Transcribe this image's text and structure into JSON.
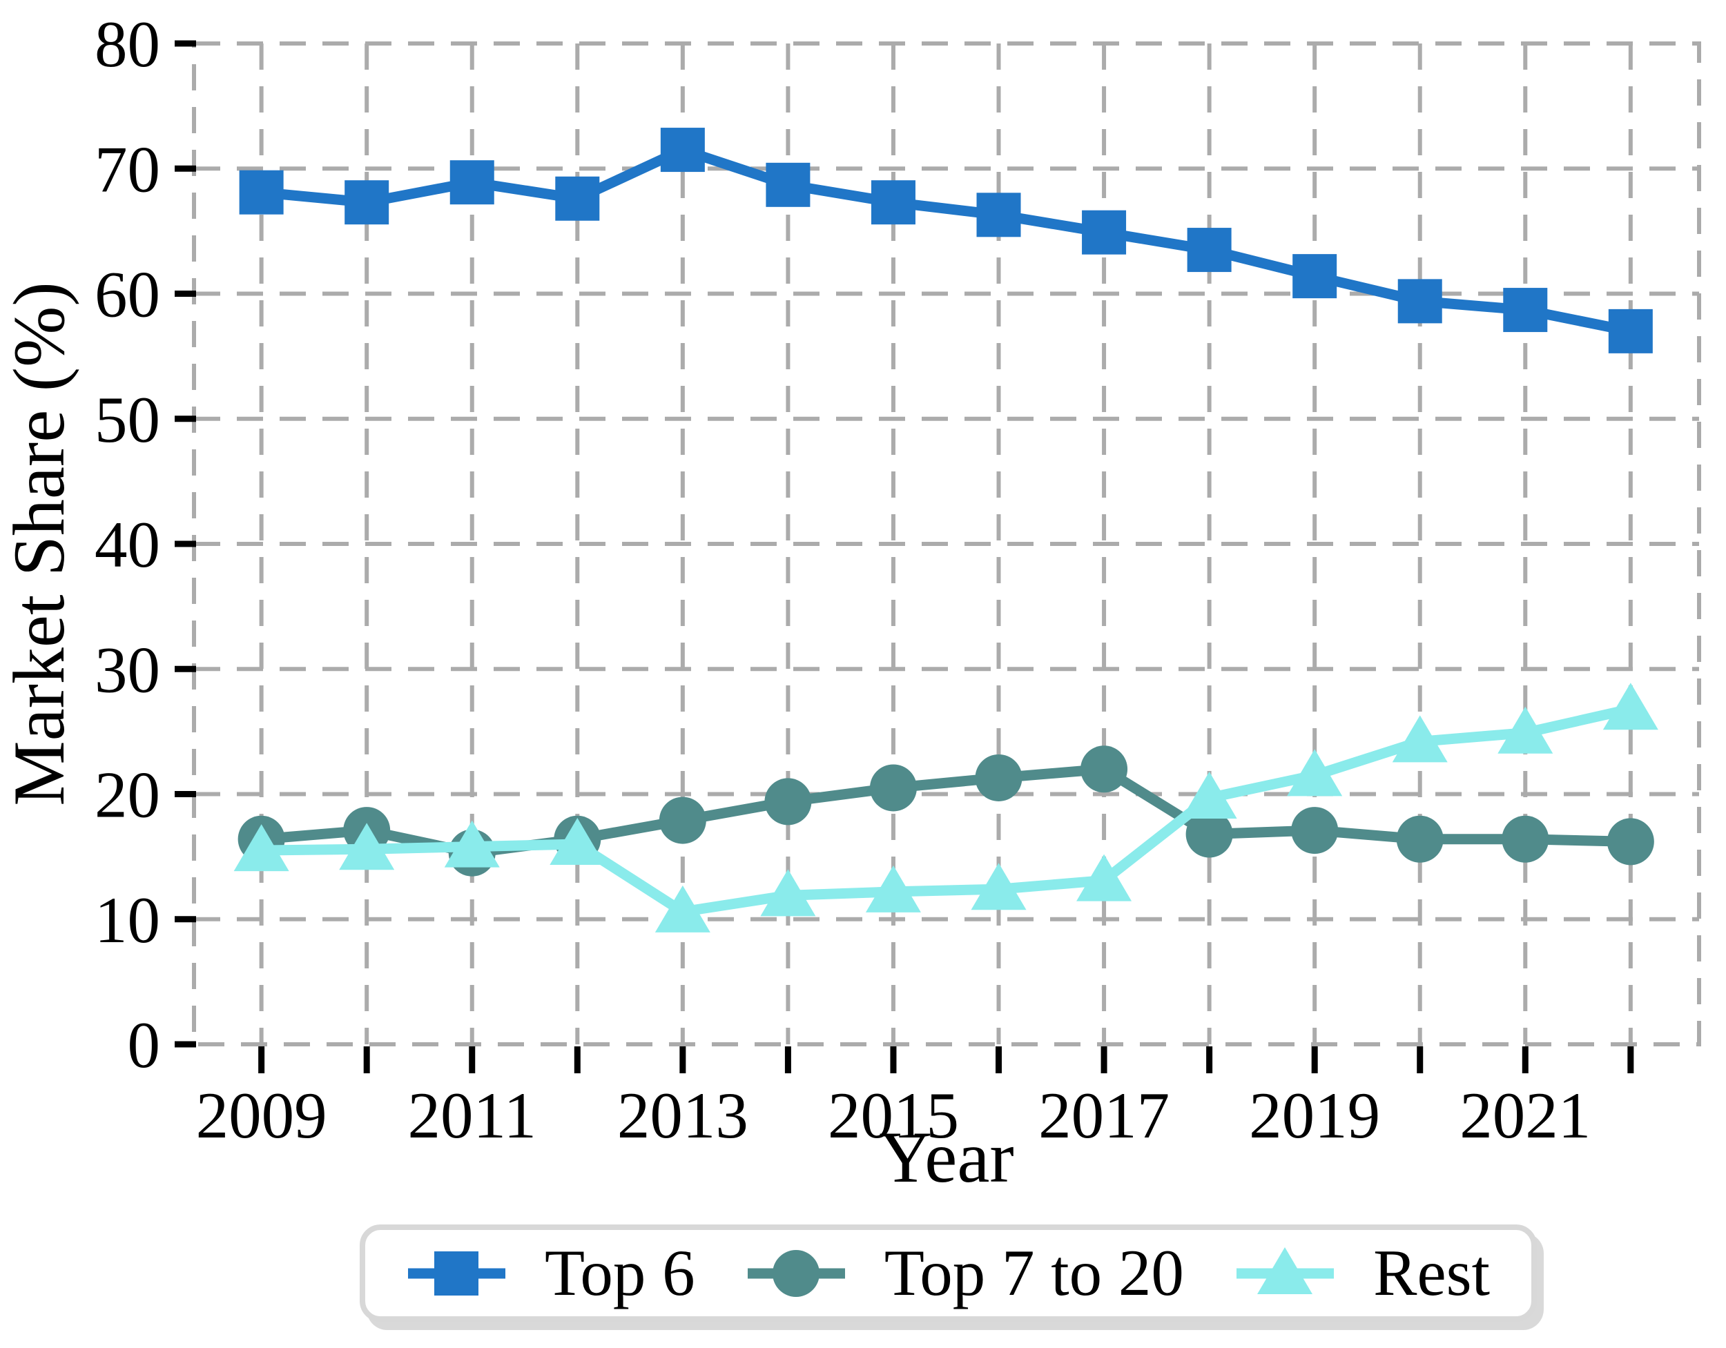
{
  "chart_data": {
    "type": "line",
    "title": "",
    "xlabel": "Year",
    "ylabel": "Market Share (%)",
    "x": [
      2009,
      2010,
      2011,
      2012,
      2013,
      2014,
      2015,
      2016,
      2017,
      2018,
      2019,
      2020,
      2021,
      2022
    ],
    "xtick_labels": [
      "2009",
      "2011",
      "2013",
      "2015",
      "2017",
      "2019",
      "2021"
    ],
    "yticks": [
      0,
      10,
      20,
      30,
      40,
      50,
      60,
      70,
      80
    ],
    "ylim": [
      0,
      80
    ],
    "grid": "dashed-both-axes",
    "legend_position": "bottom-center",
    "series": [
      {
        "name": "Top 6",
        "marker": "square",
        "color": "#2076c7",
        "values": [
          68.1,
          67.3,
          68.9,
          67.6,
          71.5,
          68.7,
          67.3,
          66.3,
          64.9,
          63.5,
          61.4,
          59.4,
          58.7,
          57.0
        ]
      },
      {
        "name": "Top 7 to 20",
        "marker": "circle",
        "color": "#508b8b",
        "values": [
          16.4,
          17.1,
          15.3,
          16.4,
          17.9,
          19.4,
          20.5,
          21.3,
          22.0,
          16.8,
          17.1,
          16.4,
          16.4,
          16.2
        ]
      },
      {
        "name": "Rest",
        "marker": "triangle",
        "color": "#8aebeb",
        "values": [
          15.5,
          15.6,
          15.8,
          16.0,
          10.6,
          11.9,
          12.2,
          12.4,
          13.1,
          19.7,
          21.5,
          24.2,
          24.9,
          26.8
        ]
      }
    ]
  },
  "colors": {
    "background": "#ffffff",
    "grid": "#ababab",
    "tick": "#000000",
    "text": "#000000",
    "legend_border": "#d8d8d8"
  }
}
